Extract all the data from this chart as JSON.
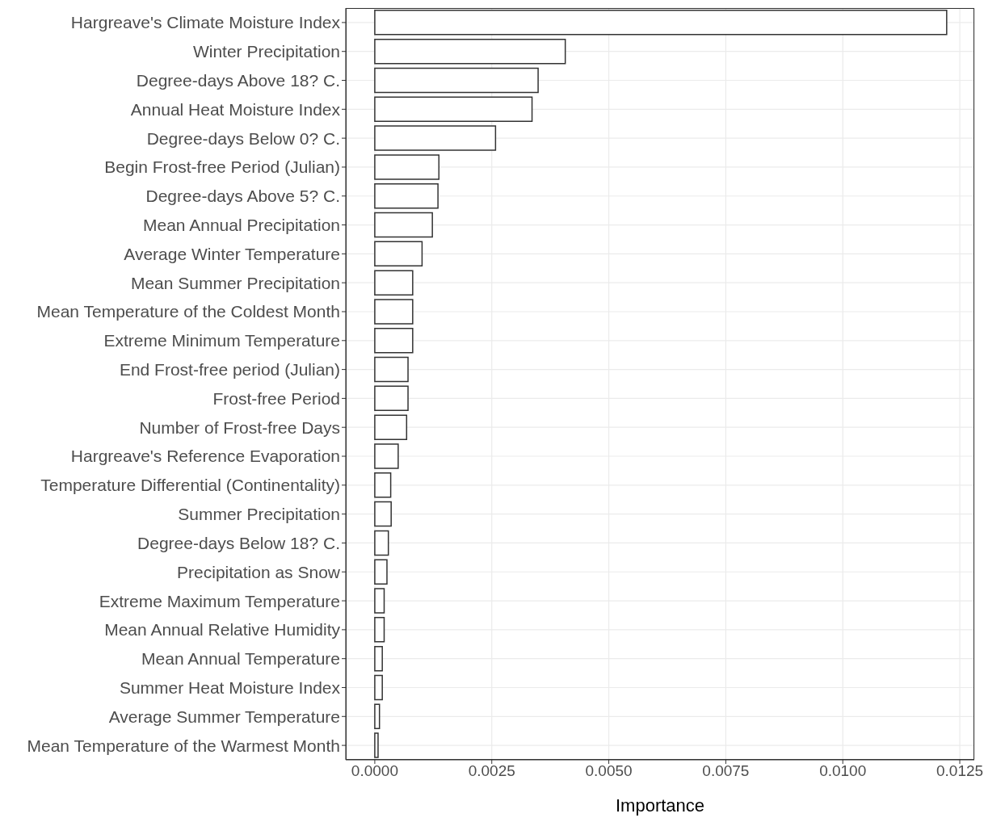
{
  "chart_data": {
    "type": "bar",
    "orientation": "horizontal",
    "xlabel": "Importance",
    "categories": [
      "Hargreave's Climate Moisture Index",
      "Winter Precipitation",
      "Degree-days Above 18? C.",
      "Annual Heat Moisture Index",
      "Degree-days Below 0? C.",
      "Begin Frost-free Period (Julian)",
      "Degree-days Above 5? C.",
      "Mean Annual Precipitation",
      "Average Winter Temperature",
      "Mean Summer Precipitation",
      "Mean Temperature of the Coldest Month",
      "Extreme Minimum Temperature",
      "End Frost-free period (Julian)",
      "Frost-free Period",
      "Number of Frost-free Days",
      "Hargreave's Reference Evaporation",
      "Temperature Differential (Continentality)",
      "Summer Precipitation",
      "Degree-days Below 18? C.",
      "Precipitation as Snow",
      "Extreme Maximum Temperature",
      "Mean Annual Relative Humidity",
      "Mean Annual Temperature",
      "Summer Heat Moisture Index",
      "Average Summer Temperature",
      "Mean Temperature of the Warmest Month"
    ],
    "values": [
      0.01222,
      0.00407,
      0.00349,
      0.00336,
      0.00258,
      0.00137,
      0.00135,
      0.00123,
      0.00101,
      0.00081,
      0.00081,
      0.00081,
      0.00071,
      0.00071,
      0.00068,
      0.0005,
      0.00034,
      0.00035,
      0.00029,
      0.00026,
      0.0002,
      0.0002,
      0.00016,
      0.00016,
      0.0001,
      7e-05
    ],
    "color": "#ffffff",
    "xlim": [
      -0.00062,
      0.01281
    ],
    "xticks": [
      {
        "value": 0,
        "label": "0.0000"
      },
      {
        "value": 0.0025,
        "label": "0.0025"
      },
      {
        "value": 0.005,
        "label": "0.0050"
      },
      {
        "value": 0.0075,
        "label": "0.0075"
      },
      {
        "value": 0.01,
        "label": "0.0100"
      },
      {
        "value": 0.0125,
        "label": "0.0125"
      }
    ],
    "grid": true,
    "legend": false
  }
}
